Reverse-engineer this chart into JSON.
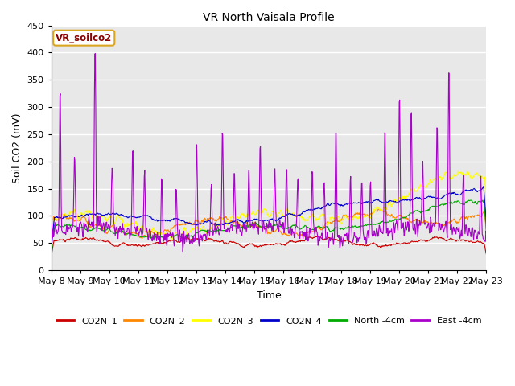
{
  "title": "VR North Vaisala Profile",
  "ylabel": "Soil CO2 (mV)",
  "xlabel": "Time",
  "ylim": [
    0,
    450
  ],
  "annotation": "VR_soilco2",
  "series": {
    "CO2N_1": {
      "color": "#CC0000",
      "label": "CO2N_1"
    },
    "CO2N_2": {
      "color": "#FF8800",
      "label": "CO2N_2"
    },
    "CO2N_3": {
      "color": "#FFFF00",
      "label": "CO2N_3"
    },
    "CO2N_4": {
      "color": "#0000CC",
      "label": "CO2N_4"
    },
    "North_4cm": {
      "color": "#00AA00",
      "label": "North -4cm"
    },
    "East_4cm": {
      "color": "#AA00CC",
      "label": "East -4cm"
    }
  },
  "x_tick_labels": [
    "May 8",
    "May 9",
    "May 10",
    "May 11",
    "May 12",
    "May 13",
    "May 14",
    "May 15",
    "May 16",
    "May 17",
    "May 18",
    "May 19",
    "May 20",
    "May 21",
    "May 22",
    "May 23"
  ],
  "background_color": "#E8E8E8",
  "grid_color": "#FFFFFF",
  "num_points": 960,
  "figsize": [
    6.4,
    4.8
  ],
  "dpi": 100
}
